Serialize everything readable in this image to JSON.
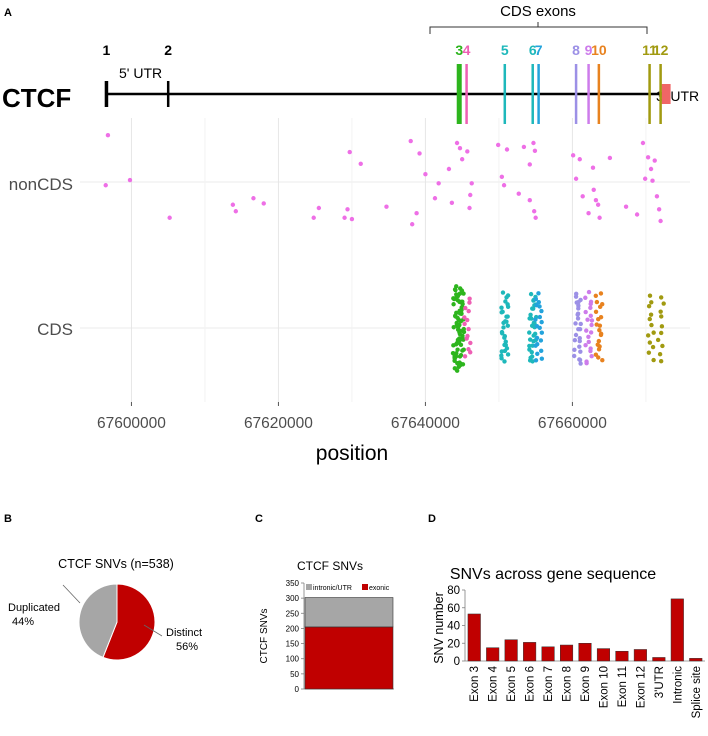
{
  "panel_labels": {
    "a": "A",
    "b": "B",
    "c": "C",
    "d": "D"
  },
  "colors": {
    "pink": "#ee6fe6",
    "green": "#2db51d",
    "magenta": "#ee5fb4",
    "cyan": "#1eb8bb",
    "blue": "#23a3dc",
    "lavender": "#9c90e6",
    "violet": "#cd7ceb",
    "orange": "#e8821f",
    "olive": "#a19a10",
    "red": "#c00000",
    "gray": "#a6a6a6",
    "utr_red": "#f06666"
  },
  "chart_data": [
    {
      "type": "scatter",
      "id": "A",
      "gene": "CTCF",
      "cds_exons_label": "CDS exons",
      "utr5_label": "5' UTR",
      "utr3_label": "3' UTR",
      "xlabel": "position",
      "xlim": [
        67593000,
        67676000
      ],
      "x_ticks": [
        67600000,
        67620000,
        67640000,
        67660000
      ],
      "x_tick_labels": [
        "67600000",
        "67620000",
        "67640000",
        "67660000"
      ],
      "categories": [
        "nonCDS",
        "CDS"
      ],
      "exons": [
        {
          "label": "1",
          "pos": 67596600,
          "color": "#000000"
        },
        {
          "label": "2",
          "pos": 67605000,
          "color": "#000000"
        },
        {
          "label": "3",
          "pos": 67644600,
          "color": "#2db51d"
        },
        {
          "label": "4",
          "pos": 67645600,
          "color": "#ee5fb4"
        },
        {
          "label": "5",
          "pos": 67650800,
          "color": "#1eb8bb"
        },
        {
          "label": "6",
          "pos": 67654600,
          "color": "#1eb8bb"
        },
        {
          "label": "7",
          "pos": 67655400,
          "color": "#23a3dc"
        },
        {
          "label": "8",
          "pos": 67660500,
          "color": "#9c90e6"
        },
        {
          "label": "9",
          "pos": 67662200,
          "color": "#cd7ceb"
        },
        {
          "label": "10",
          "pos": 67663600,
          "color": "#e8821f"
        },
        {
          "label": "11",
          "pos": 67670500,
          "color": "#a19a10"
        },
        {
          "label": "12",
          "pos": 67672000,
          "color": "#a19a10"
        }
      ],
      "noncds_points": [
        [
          67596800,
          0.72
        ],
        [
          67596500,
          -0.05
        ],
        [
          67599800,
          0.03
        ],
        [
          67605200,
          -0.55
        ],
        [
          67613800,
          -0.35
        ],
        [
          67614200,
          -0.45
        ],
        [
          67616600,
          -0.25
        ],
        [
          67618000,
          -0.33
        ],
        [
          67624800,
          -0.55
        ],
        [
          67625500,
          -0.4
        ],
        [
          67629000,
          -0.55
        ],
        [
          67629400,
          -0.42
        ],
        [
          67629700,
          0.46
        ],
        [
          67630000,
          -0.57
        ],
        [
          67631200,
          0.28
        ],
        [
          67634700,
          -0.38
        ],
        [
          67638000,
          0.63
        ],
        [
          67638200,
          -0.65
        ],
        [
          67638800,
          -0.48
        ],
        [
          67639200,
          0.44
        ],
        [
          67640000,
          0.12
        ],
        [
          67641300,
          -0.25
        ],
        [
          67641800,
          -0.02
        ],
        [
          67643200,
          0.2
        ],
        [
          67643600,
          -0.32
        ],
        [
          67644300,
          0.6
        ],
        [
          67644700,
          0.52
        ],
        [
          67645000,
          0.35
        ],
        [
          67645700,
          0.47
        ],
        [
          67646000,
          -0.4
        ],
        [
          67646100,
          -0.2
        ],
        [
          67646300,
          -0.02
        ],
        [
          67649900,
          0.57
        ],
        [
          67650400,
          0.08
        ],
        [
          67650700,
          -0.05
        ],
        [
          67651100,
          0.5
        ],
        [
          67652700,
          -0.18
        ],
        [
          67653400,
          0.54
        ],
        [
          67654200,
          0.27
        ],
        [
          67654700,
          0.6
        ],
        [
          67654900,
          0.48
        ],
        [
          67654200,
          -0.28
        ],
        [
          67654800,
          -0.45
        ],
        [
          67655000,
          -0.55
        ],
        [
          67660100,
          0.41
        ],
        [
          67660500,
          0.05
        ],
        [
          67661000,
          0.35
        ],
        [
          67661400,
          -0.22
        ],
        [
          67662200,
          -0.48
        ],
        [
          67662800,
          0.22
        ],
        [
          67662900,
          -0.12
        ],
        [
          67663200,
          -0.28
        ],
        [
          67663500,
          -0.35
        ],
        [
          67663700,
          -0.55
        ],
        [
          67665100,
          0.37
        ],
        [
          67667300,
          -0.38
        ],
        [
          67668800,
          -0.5
        ],
        [
          67669600,
          0.6
        ],
        [
          67669900,
          0.05
        ],
        [
          67670300,
          0.38
        ],
        [
          67670700,
          0.2
        ],
        [
          67670900,
          0.02
        ],
        [
          67671200,
          0.33
        ],
        [
          67671500,
          -0.22
        ],
        [
          67671800,
          -0.42
        ],
        [
          67672000,
          -0.6
        ]
      ],
      "cds_points": [
        {
          "pos": 67644500,
          "count": 75,
          "spread": 0.9,
          "color": "#2db51d"
        },
        {
          "pos": 67645700,
          "count": 14,
          "spread": 0.3,
          "color": "#ee5fb4"
        },
        {
          "pos": 67650800,
          "count": 30,
          "spread": 0.5,
          "color": "#1eb8bb"
        },
        {
          "pos": 67654600,
          "count": 30,
          "spread": 0.5,
          "color": "#1eb8bb"
        },
        {
          "pos": 67655400,
          "count": 20,
          "spread": 0.5,
          "color": "#23a3dc"
        },
        {
          "pos": 67660700,
          "count": 25,
          "spread": 0.6,
          "color": "#9c90e6"
        },
        {
          "pos": 67662200,
          "count": 20,
          "spread": 0.6,
          "color": "#cd7ceb"
        },
        {
          "pos": 67663600,
          "count": 20,
          "spread": 0.5,
          "color": "#e8821f"
        },
        {
          "pos": 67670700,
          "count": 12,
          "spread": 0.4,
          "color": "#a19a10"
        },
        {
          "pos": 67672000,
          "count": 10,
          "spread": 0.4,
          "color": "#a19a10"
        }
      ]
    },
    {
      "type": "pie",
      "id": "B",
      "title": "CTCF SNVs (n=538)",
      "slices": [
        {
          "name": "Distinct",
          "value": 56,
          "label": "56%",
          "color": "#c00000"
        },
        {
          "name": "Duplicated",
          "value": 44,
          "label": "44%",
          "color": "#a6a6a6"
        }
      ]
    },
    {
      "type": "bar",
      "id": "C",
      "title": "CTCF SNVs",
      "ylabel": "CTCF SNVs",
      "ylim": [
        0,
        350
      ],
      "y_ticks": [
        0,
        50,
        100,
        150,
        200,
        250,
        300,
        350
      ],
      "y_tick_labels": [
        "0",
        "50",
        "100",
        "150",
        "200",
        "250",
        "300",
        "350"
      ],
      "series": [
        {
          "name": "exonic",
          "values": [
            205
          ],
          "color": "#c00000"
        },
        {
          "name": "intronic/UTR",
          "values": [
            97
          ],
          "color": "#a6a6a6"
        }
      ]
    },
    {
      "type": "bar",
      "id": "D",
      "title": "SNVs across gene sequence",
      "ylabel": "SNV number",
      "ylim": [
        0,
        80
      ],
      "y_ticks": [
        0,
        20,
        40,
        60,
        80
      ],
      "y_tick_labels": [
        "0",
        "20",
        "40",
        "60",
        "80"
      ],
      "categories": [
        "Exon 3",
        "Exon 4",
        "Exon 5",
        "Exon 6",
        "Exon 7",
        "Exon 8",
        "Exon 9",
        "Exon 10",
        "Exon 11",
        "Exon 12",
        "3'UTR",
        "Intronic",
        "Splice site"
      ],
      "values": [
        53,
        15,
        24,
        21,
        16,
        18,
        20,
        14,
        11,
        13,
        4,
        70,
        3
      ],
      "color": "#c00000"
    }
  ]
}
